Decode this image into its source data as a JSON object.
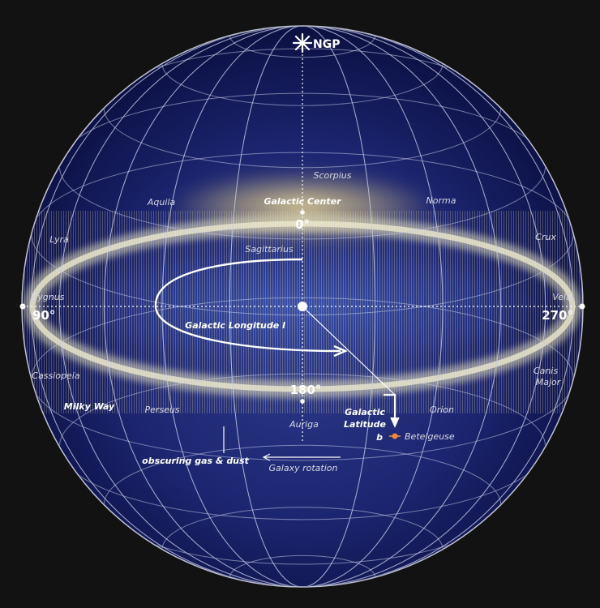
{
  "pole": {
    "label": "NGP"
  },
  "longitudes": {
    "deg0": "0°",
    "deg90": "90°",
    "deg180": "180°",
    "deg270": "270°"
  },
  "constellations": {
    "scorpius": "Scorpius",
    "aquila": "Aquila",
    "norma": "Norma",
    "lyra": "Lyra",
    "crux": "Crux",
    "sagittarius": "Sagittarius",
    "cygnus": "Cygnus",
    "vela": "Vela",
    "cassiopeia": "Cassiopeia",
    "canis_major_1": "Canis",
    "canis_major_2": "Major",
    "perseus": "Perseus",
    "orion": "Orion",
    "auriga": "Auriga",
    "betelgeuse": "Betelgeuse"
  },
  "annotations": {
    "galactic_center": "Galactic Center",
    "galactic_longitude": "Galactic Longitude l",
    "galactic_latitude_1": "Galactic",
    "galactic_latitude_2": "Latitude",
    "latitude_symbol": "b",
    "milky_way": "Milky Way",
    "obscuring": "obscuring gas & dust",
    "galaxy_rotation": "Galaxy rotation"
  },
  "colors": {
    "sphere_core": "#26337e",
    "sphere_edge": "#0d1245",
    "grid": "#c8cde8",
    "galactic_band": "#e8e4c0",
    "galactic_center_glow": "#e8d596",
    "betelgeuse": "#f0883a"
  }
}
